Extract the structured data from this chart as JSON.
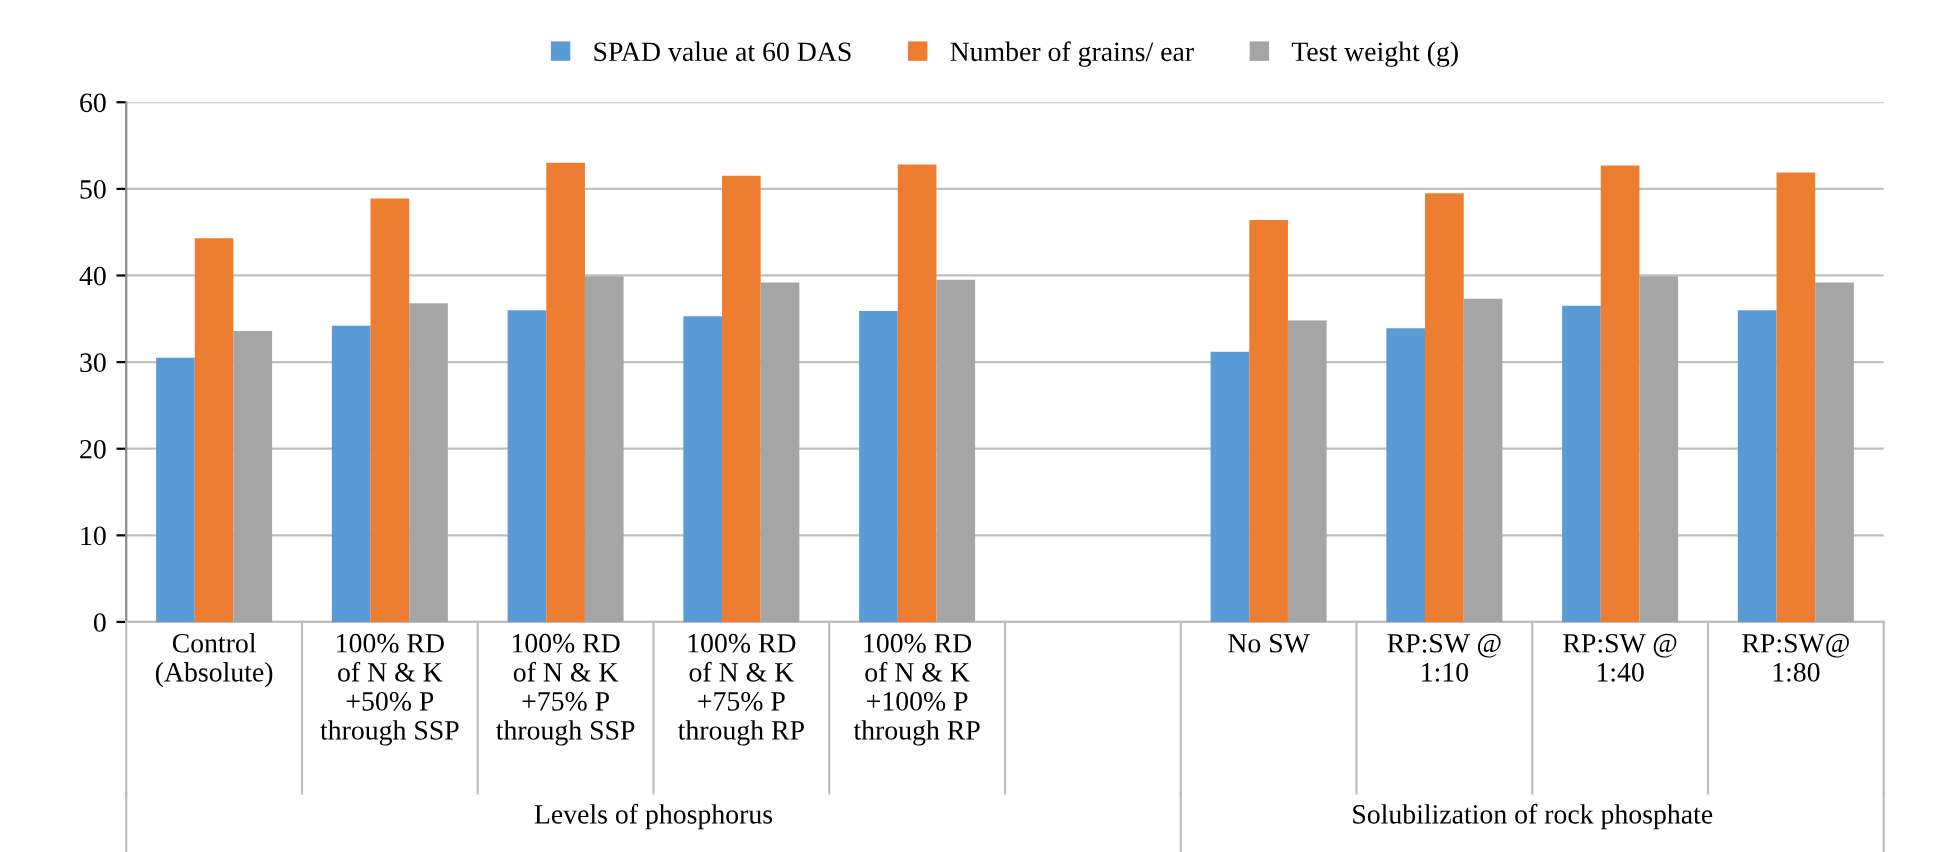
{
  "chart_data": {
    "type": "bar",
    "categories": [
      "Control\n(Absolute)",
      "100% RD\nof N & K\n+50% P\nthrough SSP",
      "100% RD\nof N & K\n+75% P\nthrough SSP",
      "100% RD\nof N & K\n+75% P\nthrough RP",
      "100% RD\nof N & K\n+100% P\nthrough RP",
      null,
      "No SW",
      "RP:SW @\n1:10",
      "RP:SW @\n1:40",
      "RP:SW@\n1:80"
    ],
    "series": [
      {
        "name": "SPAD value at 60 DAS",
        "color": "#5b9bd5",
        "values": [
          30.5,
          34.2,
          36.0,
          35.3,
          35.9,
          null,
          31.2,
          33.9,
          36.5,
          36.0
        ]
      },
      {
        "name": "Number of grains/ ear",
        "color": "#ed7d31",
        "values": [
          44.3,
          48.9,
          53.0,
          51.5,
          52.8,
          null,
          46.4,
          49.5,
          52.7,
          51.9
        ]
      },
      {
        "name": "Test weight (g)",
        "color": "#a5a5a5",
        "values": [
          33.6,
          36.8,
          39.9,
          39.2,
          39.5,
          null,
          34.8,
          37.3,
          39.9,
          39.2
        ]
      }
    ],
    "ylim": [
      0,
      60
    ],
    "yticks": [
      0,
      10,
      20,
      30,
      40,
      50,
      60
    ],
    "grid": "y",
    "legend": "top",
    "annotations": [
      "Levels of phosphorus",
      "Solubilization of rock phosphate"
    ]
  }
}
